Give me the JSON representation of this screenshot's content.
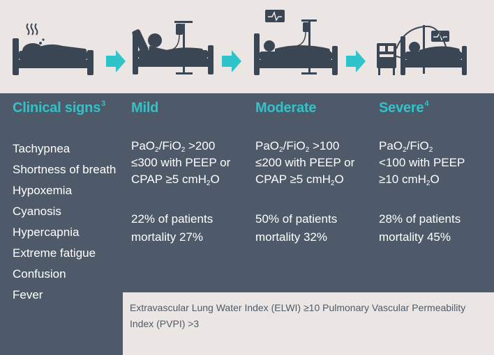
{
  "colors": {
    "accent": "#2fc4c9",
    "panel": "#4e5a69",
    "background": "#ebe6e3",
    "text": "#ffffff"
  },
  "illustrations": [
    {
      "icon": "patient-in-bed-fever-icon"
    },
    {
      "icon": "arrow-right-icon"
    },
    {
      "icon": "patient-in-bed-iv-drip-icon"
    },
    {
      "icon": "arrow-right-icon"
    },
    {
      "icon": "patient-in-bed-monitor-icon"
    },
    {
      "icon": "arrow-right-icon"
    },
    {
      "icon": "patient-on-ventilator-icon"
    }
  ],
  "columns": {
    "clinical": {
      "title": "Clinical signs",
      "ref": "3",
      "signs": [
        "Tachypnea",
        "Shortness of breath",
        "Hypoxemia",
        "Cyanosis",
        "Hypercapnia",
        "Extreme fatigue",
        "Confusion",
        "Fever"
      ]
    },
    "mild": {
      "title": "Mild",
      "criteria": {
        "pre1": "PaO",
        "sub1": "2",
        "mid1": "/FiO",
        "sub2": "2",
        "post1": " >200",
        "line2": "≤300 with PEEP or",
        "pre3": "CPAP ≥5 cmH",
        "sub3": "2",
        "post3": "O"
      },
      "patients": "22% of patients",
      "mortality": "mortality 27%"
    },
    "moderate": {
      "title": "Moderate",
      "criteria": {
        "pre1": "PaO",
        "sub1": "2",
        "mid1": "/FiO",
        "sub2": "2",
        "post1": " >100",
        "line2": "≤200 with PEEP or",
        "pre3": "CPAP ≥5 cmH",
        "sub3": "2",
        "post3": "O"
      },
      "patients": "50% of patients",
      "mortality": "mortality 32%"
    },
    "severe": {
      "title": "Severe",
      "ref": "4",
      "criteria": {
        "pre1": "PaO",
        "sub1": "2",
        "mid1": "/FiO",
        "sub2": "2",
        "line2": "<100 with PEEP",
        "pre3": "≥10 cmH",
        "sub3": "2",
        "post3": "O"
      },
      "patients": "28% of patients",
      "mortality": "mortality 45%"
    }
  },
  "footnote": "Extravascular Lung Water Index (ELWI) ≥10 Pulmonary Vascular Permeability Index (PVPI) >3"
}
